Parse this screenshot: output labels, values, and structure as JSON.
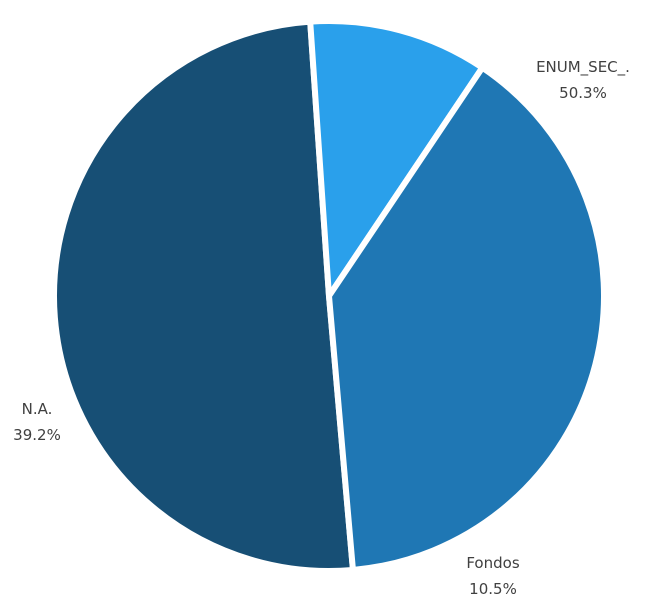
{
  "chart_data": {
    "type": "pie",
    "title": "",
    "slices": [
      {
        "label": "ENUM_SEC_.",
        "value": 50.3,
        "value_label": "50.3%",
        "color": "#174F75"
      },
      {
        "label": "Fondos",
        "value": 10.5,
        "value_label": "10.5%",
        "color": "#2AA0EB"
      },
      {
        "label": "N.A.",
        "value": 39.2,
        "value_label": "39.2%",
        "color": "#1F77B4"
      }
    ],
    "legend": "none",
    "data_labels": "outside"
  }
}
